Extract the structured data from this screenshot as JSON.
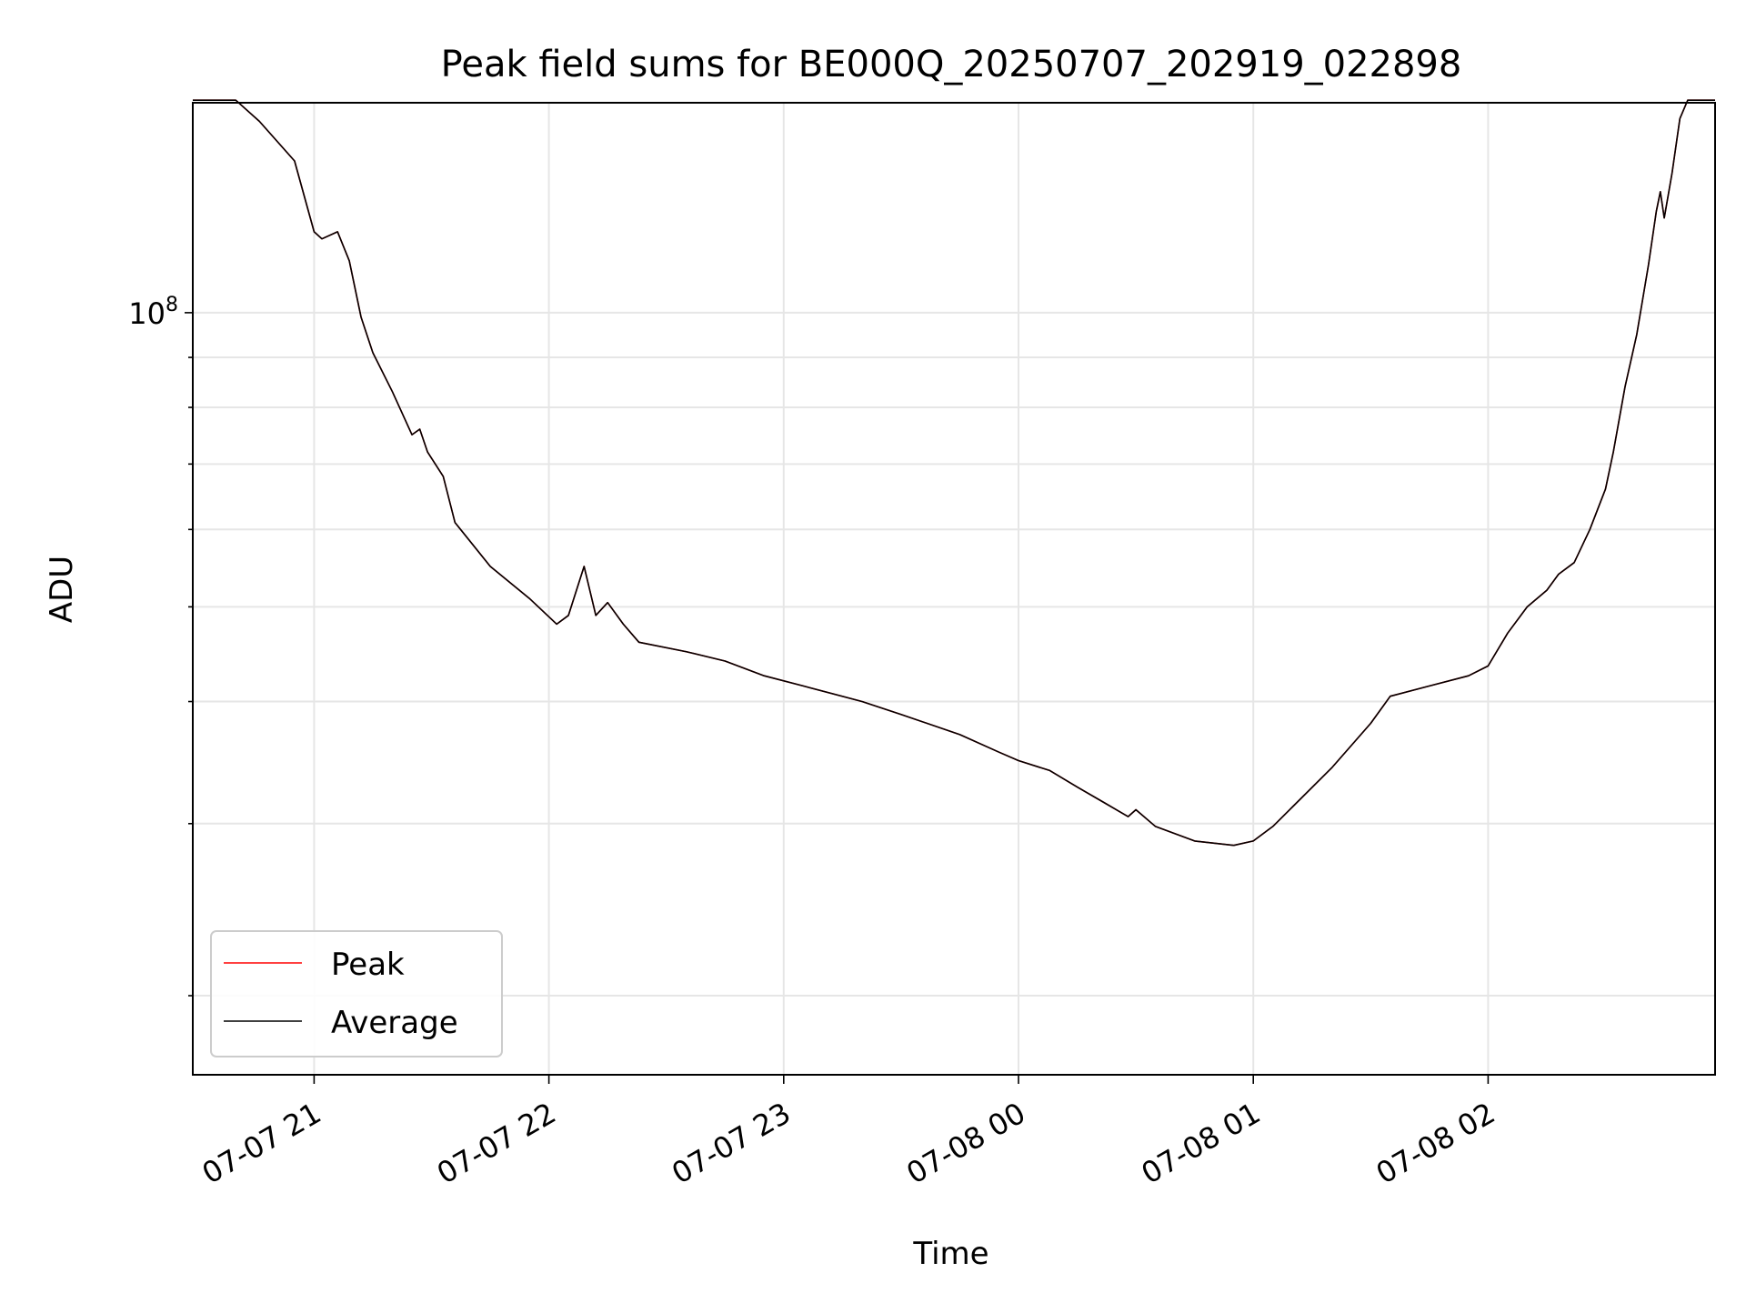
{
  "chart_data": {
    "type": "line",
    "title": "Peak field sums for BE000Q_20250707_202919_022898",
    "xlabel": "Time",
    "ylabel": "ADU",
    "x_scale": "time",
    "y_scale": "log",
    "xlim": [
      "2025-07-07 20:29",
      "2025-07-08 02:58"
    ],
    "ylim": [
      16600000,
      164000000
    ],
    "grid": true,
    "legend": "lower-left",
    "x_ticks": [
      {
        "t": "2025-07-07 21:00",
        "label": "07-07 21"
      },
      {
        "t": "2025-07-07 22:00",
        "label": "07-07 22"
      },
      {
        "t": "2025-07-07 23:00",
        "label": "07-07 23"
      },
      {
        "t": "2025-07-08 00:00",
        "label": "07-08 00"
      },
      {
        "t": "2025-07-08 01:00",
        "label": "07-08 01"
      },
      {
        "t": "2025-07-08 02:00",
        "label": "07-08 02"
      }
    ],
    "y_major_ticks": [
      {
        "value": 100000000,
        "base": "10",
        "exp": "8"
      }
    ],
    "y_minor_ticks": [
      20000000,
      30000000,
      40000000,
      50000000,
      60000000,
      70000000,
      80000000,
      90000000,
      200000000
    ],
    "series": [
      {
        "name": "Peak",
        "color": "#ff0000",
        "points": [
          [
            "2025-07-07 20:29",
            165000000
          ],
          [
            "2025-07-07 20:40",
            165000000
          ],
          [
            "2025-07-07 20:46",
            157000000
          ],
          [
            "2025-07-07 20:55",
            143000000
          ],
          [
            "2025-07-07 21:00",
            121000000
          ],
          [
            "2025-07-07 21:02",
            119000000
          ],
          [
            "2025-07-07 21:06",
            121000000
          ],
          [
            "2025-07-07 21:09",
            113000000
          ],
          [
            "2025-07-07 21:12",
            99000000
          ],
          [
            "2025-07-07 21:15",
            91000000
          ],
          [
            "2025-07-07 21:20",
            83000000
          ],
          [
            "2025-07-07 21:25",
            75000000
          ],
          [
            "2025-07-07 21:27",
            76000000
          ],
          [
            "2025-07-07 21:29",
            72000000
          ],
          [
            "2025-07-07 21:33",
            68000000
          ],
          [
            "2025-07-07 21:36",
            61000000
          ],
          [
            "2025-07-07 21:45",
            55000000
          ],
          [
            "2025-07-07 21:55",
            51000000
          ],
          [
            "2025-07-07 22:02",
            48000000
          ],
          [
            "2025-07-07 22:05",
            49000000
          ],
          [
            "2025-07-07 22:09",
            55000000
          ],
          [
            "2025-07-07 22:12",
            49000000
          ],
          [
            "2025-07-07 22:15",
            50500000
          ],
          [
            "2025-07-07 22:19",
            48000000
          ],
          [
            "2025-07-07 22:23",
            46000000
          ],
          [
            "2025-07-07 22:35",
            45000000
          ],
          [
            "2025-07-07 22:45",
            44000000
          ],
          [
            "2025-07-07 22:55",
            42500000
          ],
          [
            "2025-07-07 23:05",
            41500000
          ],
          [
            "2025-07-07 23:20",
            40000000
          ],
          [
            "2025-07-07 23:30",
            38800000
          ],
          [
            "2025-07-07 23:45",
            37000000
          ],
          [
            "2025-07-07 23:55",
            35500000
          ],
          [
            "2025-07-08 00:00",
            34800000
          ],
          [
            "2025-07-08 00:08",
            34000000
          ],
          [
            "2025-07-08 00:15",
            32700000
          ],
          [
            "2025-07-08 00:22",
            31500000
          ],
          [
            "2025-07-08 00:28",
            30500000
          ],
          [
            "2025-07-08 00:30",
            31000000
          ],
          [
            "2025-07-08 00:35",
            29800000
          ],
          [
            "2025-07-08 00:45",
            28800000
          ],
          [
            "2025-07-08 00:55",
            28500000
          ],
          [
            "2025-07-08 01:00",
            28800000
          ],
          [
            "2025-07-08 01:05",
            29800000
          ],
          [
            "2025-07-08 01:10",
            31200000
          ],
          [
            "2025-07-08 01:20",
            34200000
          ],
          [
            "2025-07-08 01:30",
            38000000
          ],
          [
            "2025-07-08 01:35",
            40500000
          ],
          [
            "2025-07-08 01:45",
            41500000
          ],
          [
            "2025-07-08 01:55",
            42500000
          ],
          [
            "2025-07-08 02:00",
            43500000
          ],
          [
            "2025-07-08 02:05",
            47000000
          ],
          [
            "2025-07-08 02:10",
            50000000
          ],
          [
            "2025-07-08 02:15",
            52000000
          ],
          [
            "2025-07-08 02:18",
            54000000
          ],
          [
            "2025-07-08 02:22",
            55500000
          ],
          [
            "2025-07-08 02:26",
            60000000
          ],
          [
            "2025-07-08 02:30",
            66000000
          ],
          [
            "2025-07-08 02:32",
            72000000
          ],
          [
            "2025-07-08 02:35",
            84000000
          ],
          [
            "2025-07-08 02:38",
            95000000
          ],
          [
            "2025-07-08 02:41",
            112000000
          ],
          [
            "2025-07-08 02:43",
            127000000
          ],
          [
            "2025-07-08 02:44",
            133000000
          ],
          [
            "2025-07-08 02:45",
            125000000
          ],
          [
            "2025-07-08 02:47",
            139000000
          ],
          [
            "2025-07-08 02:49",
            158000000
          ],
          [
            "2025-07-08 02:51",
            165000000
          ],
          [
            "2025-07-08 02:55",
            165000000
          ],
          [
            "2025-07-08 02:58",
            165000000
          ]
        ]
      },
      {
        "name": "Average",
        "color": "#000000",
        "points": [
          [
            "2025-07-07 20:29",
            165000000
          ],
          [
            "2025-07-07 20:40",
            165000000
          ],
          [
            "2025-07-07 20:46",
            157000000
          ],
          [
            "2025-07-07 20:55",
            143000000
          ],
          [
            "2025-07-07 21:00",
            121000000
          ],
          [
            "2025-07-07 21:02",
            119000000
          ],
          [
            "2025-07-07 21:06",
            121000000
          ],
          [
            "2025-07-07 21:09",
            113000000
          ],
          [
            "2025-07-07 21:12",
            99000000
          ],
          [
            "2025-07-07 21:15",
            91000000
          ],
          [
            "2025-07-07 21:20",
            83000000
          ],
          [
            "2025-07-07 21:25",
            75000000
          ],
          [
            "2025-07-07 21:27",
            76000000
          ],
          [
            "2025-07-07 21:29",
            72000000
          ],
          [
            "2025-07-07 21:33",
            68000000
          ],
          [
            "2025-07-07 21:36",
            61000000
          ],
          [
            "2025-07-07 21:45",
            55000000
          ],
          [
            "2025-07-07 21:55",
            51000000
          ],
          [
            "2025-07-07 22:02",
            48000000
          ],
          [
            "2025-07-07 22:05",
            49000000
          ],
          [
            "2025-07-07 22:09",
            55000000
          ],
          [
            "2025-07-07 22:12",
            49000000
          ],
          [
            "2025-07-07 22:15",
            50500000
          ],
          [
            "2025-07-07 22:19",
            48000000
          ],
          [
            "2025-07-07 22:23",
            46000000
          ],
          [
            "2025-07-07 22:35",
            45000000
          ],
          [
            "2025-07-07 22:45",
            44000000
          ],
          [
            "2025-07-07 22:55",
            42500000
          ],
          [
            "2025-07-07 23:05",
            41500000
          ],
          [
            "2025-07-07 23:20",
            40000000
          ],
          [
            "2025-07-07 23:30",
            38800000
          ],
          [
            "2025-07-07 23:45",
            37000000
          ],
          [
            "2025-07-07 23:55",
            35500000
          ],
          [
            "2025-07-08 00:00",
            34800000
          ],
          [
            "2025-07-08 00:08",
            34000000
          ],
          [
            "2025-07-08 00:15",
            32700000
          ],
          [
            "2025-07-08 00:22",
            31500000
          ],
          [
            "2025-07-08 00:28",
            30500000
          ],
          [
            "2025-07-08 00:30",
            31000000
          ],
          [
            "2025-07-08 00:35",
            29800000
          ],
          [
            "2025-07-08 00:45",
            28800000
          ],
          [
            "2025-07-08 00:55",
            28500000
          ],
          [
            "2025-07-08 01:00",
            28800000
          ],
          [
            "2025-07-08 01:05",
            29800000
          ],
          [
            "2025-07-08 01:10",
            31200000
          ],
          [
            "2025-07-08 01:20",
            34200000
          ],
          [
            "2025-07-08 01:30",
            38000000
          ],
          [
            "2025-07-08 01:35",
            40500000
          ],
          [
            "2025-07-08 01:45",
            41500000
          ],
          [
            "2025-07-08 01:55",
            42500000
          ],
          [
            "2025-07-08 02:00",
            43500000
          ],
          [
            "2025-07-08 02:05",
            47000000
          ],
          [
            "2025-07-08 02:10",
            50000000
          ],
          [
            "2025-07-08 02:15",
            52000000
          ],
          [
            "2025-07-08 02:18",
            54000000
          ],
          [
            "2025-07-08 02:22",
            55500000
          ],
          [
            "2025-07-08 02:26",
            60000000
          ],
          [
            "2025-07-08 02:30",
            66000000
          ],
          [
            "2025-07-08 02:32",
            72000000
          ],
          [
            "2025-07-08 02:35",
            84000000
          ],
          [
            "2025-07-08 02:38",
            95000000
          ],
          [
            "2025-07-08 02:41",
            112000000
          ],
          [
            "2025-07-08 02:43",
            127000000
          ],
          [
            "2025-07-08 02:44",
            133000000
          ],
          [
            "2025-07-08 02:45",
            125000000
          ],
          [
            "2025-07-08 02:47",
            139000000
          ],
          [
            "2025-07-08 02:49",
            158000000
          ],
          [
            "2025-07-08 02:51",
            165000000
          ],
          [
            "2025-07-08 02:55",
            165000000
          ],
          [
            "2025-07-08 02:58",
            165000000
          ]
        ]
      }
    ]
  }
}
